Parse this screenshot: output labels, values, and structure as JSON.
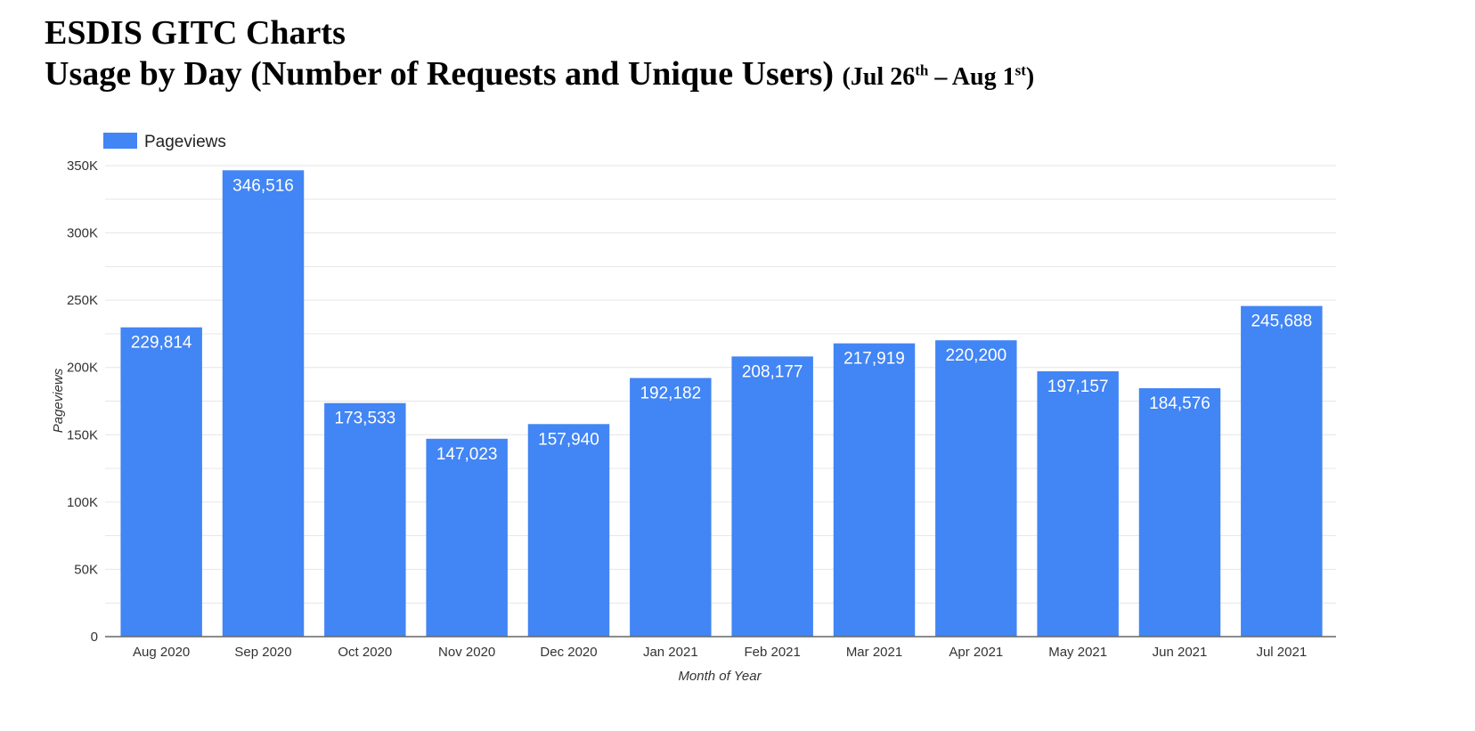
{
  "header": {
    "title_line1": "ESDIS GITC Charts",
    "title_line2": "Usage by Day (Number of Requests and Unique Users)",
    "range_open": "(Jul 26",
    "range_sup1": "th",
    "range_mid": " – Aug 1",
    "range_sup2": "st",
    "range_close": ")"
  },
  "chart_data": {
    "type": "bar",
    "categories": [
      "Aug 2020",
      "Sep 2020",
      "Oct 2020",
      "Nov 2020",
      "Dec 2020",
      "Jan 2021",
      "Feb 2021",
      "Mar 2021",
      "Apr 2021",
      "May 2021",
      "Jun 2021",
      "Jul 2021"
    ],
    "series": [
      {
        "name": "Pageviews",
        "values": [
          229814,
          346516,
          173533,
          147023,
          157940,
          192182,
          208177,
          217919,
          220200,
          197157,
          184576,
          245688
        ],
        "color": "#4285f4"
      }
    ],
    "value_labels": [
      "229,814",
      "346,516",
      "173,533",
      "147,023",
      "157,940",
      "192,182",
      "208,177",
      "217,919",
      "220,200",
      "197,157",
      "184,576",
      "245,688"
    ],
    "xlabel": "Month of Year",
    "ylabel": "Pageviews",
    "ylim": [
      0,
      350000
    ],
    "yticks": [
      0,
      50000,
      100000,
      150000,
      200000,
      250000,
      300000,
      350000
    ],
    "ytick_labels": [
      "0",
      "50K",
      "100K",
      "150K",
      "200K",
      "250K",
      "300K",
      "350K"
    ],
    "legend_position": "top-left",
    "grid": true,
    "bar_color": "#4285f4",
    "gridline_color": "#e6e6e6"
  }
}
